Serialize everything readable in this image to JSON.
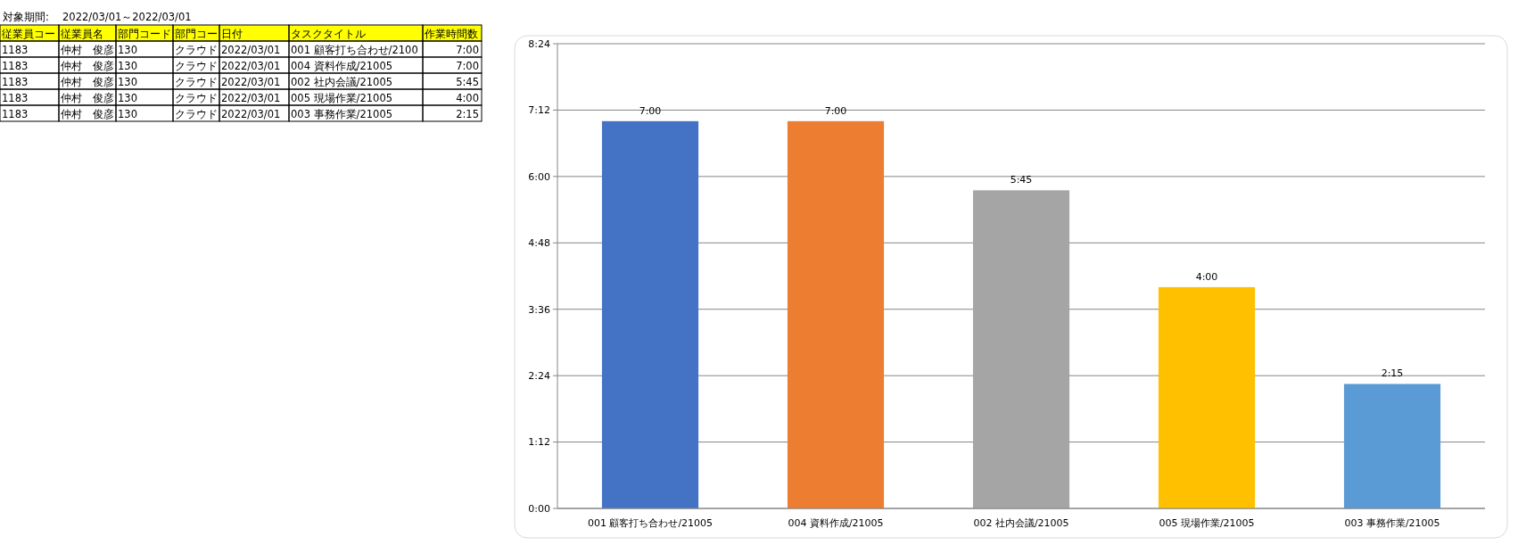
{
  "chart_data": [
    {
      "type": "other",
      "annotations": [
        "対象期間:",
        "2022/03/01～2022/03/01",
        "従業員コー",
        "従業員名",
        "部門コード",
        "部門コー",
        "日付",
        "タスクタイトル",
        "作業時間数",
        "1183",
        "仲村　俊彦",
        "130",
        "クラウド",
        "2022/03/01",
        "001 顧客打ち合わせ/2100",
        "7:00",
        "1183",
        "仲村　俊彦",
        "130",
        "クラウド",
        "2022/03/01",
        "004 資料作成/21005",
        "7:00",
        "1183",
        "仲村　俊彦",
        "130",
        "クラウド",
        "2022/03/01",
        "002 社内会議/21005",
        "5:45",
        "1183",
        "仲村　俊彦",
        "130",
        "クラウド",
        "2022/03/01",
        "005 現場作業/21005",
        "4:00",
        "1183",
        "仲村　俊彦",
        "130",
        "クラウド",
        "2022/03/01",
        "003 事務作業/21005",
        "2:15"
      ]
    },
    {
      "type": "bar",
      "categories": [
        "001 顧客打ち合わせ/21005",
        "004 資料作成/21005",
        "002 社内会議/21005",
        "005 現場作業/21005",
        "003 事務作業/21005"
      ],
      "values": [
        7,
        7,
        5.75,
        4,
        2.25
      ],
      "colors": [
        "#4472c4",
        "#ed7d31",
        "#a5a5a5",
        "#ffc000",
        "#5b9bd5"
      ],
      "value_labels": [
        "7:00",
        "7:00",
        "5:45",
        "4:00",
        "2:15"
      ],
      "ylim": [
        0,
        8.4
      ],
      "yticks": [
        {
          "value": 0,
          "label": "0:00"
        },
        {
          "value": 1.2,
          "label": "1:12"
        },
        {
          "value": 2.4,
          "label": "2:24"
        },
        {
          "value": 3.6,
          "label": "3:36"
        },
        {
          "value": 4.8,
          "label": "4:48"
        },
        {
          "value": 6,
          "label": "6:00"
        },
        {
          "value": 7.2,
          "label": "7:12"
        },
        {
          "value": 8.4,
          "label": "8:24"
        }
      ],
      "grid": "y"
    }
  ]
}
